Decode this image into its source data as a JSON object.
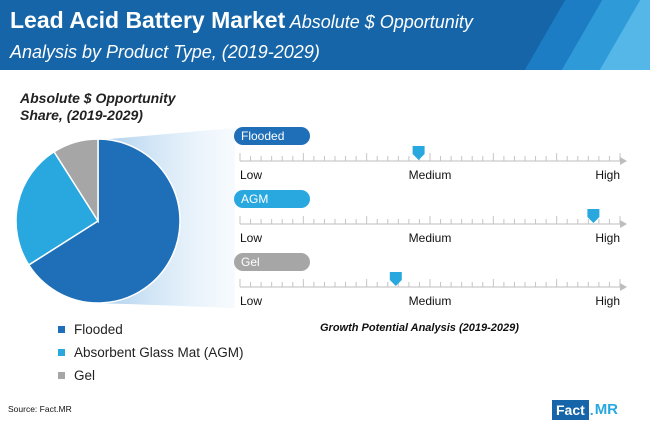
{
  "header": {
    "title_main": "Lead Acid Battery Market",
    "title_sub_line1": "Absolute $ Opportunity",
    "title_sub_line2": "Analysis by Product Type, (2019-2029)"
  },
  "colors": {
    "header_dark": "#1565a8",
    "flooded": "#1f6fb8",
    "agm": "#29a8e0",
    "gel": "#a6a6a6",
    "marker": "#29a8e0"
  },
  "pie_title_line1": "Absolute $ Opportunity",
  "pie_title_line2": "Share, (2019-2029)",
  "legend": [
    {
      "label": "Flooded",
      "color": "#1f6fb8"
    },
    {
      "label": "Absorbent Glass Mat (AGM)",
      "color": "#29a8e0"
    },
    {
      "label": "Gel",
      "color": "#a6a6a6"
    }
  ],
  "growth_caption": "Growth Potential Analysis (2019-2029)",
  "source": "Source: Fact.MR",
  "logo": {
    "fact": "Fact",
    "dot": ".",
    "mr": "MR"
  },
  "chart_data": [
    {
      "type": "pie",
      "title": "Absolute $ Opportunity Share, (2019-2029)",
      "labels": [
        "Flooded",
        "Absorbent Glass Mat (AGM)",
        "Gel"
      ],
      "values": [
        66,
        25,
        9
      ],
      "colors": [
        "#1f6fb8",
        "#29a8e0",
        "#a6a6a6"
      ]
    },
    {
      "type": "scatter",
      "title": "Growth Potential Analysis (2019-2029)",
      "scale_labels": [
        "Low",
        "Medium",
        "High"
      ],
      "rows": [
        {
          "name": "Flooded",
          "color": "#1f6fb8",
          "value": 0.47
        },
        {
          "name": "AGM",
          "color": "#29a8e0",
          "value": 0.93
        },
        {
          "name": "Gel",
          "color": "#a6a6a6",
          "value": 0.41
        }
      ]
    }
  ]
}
